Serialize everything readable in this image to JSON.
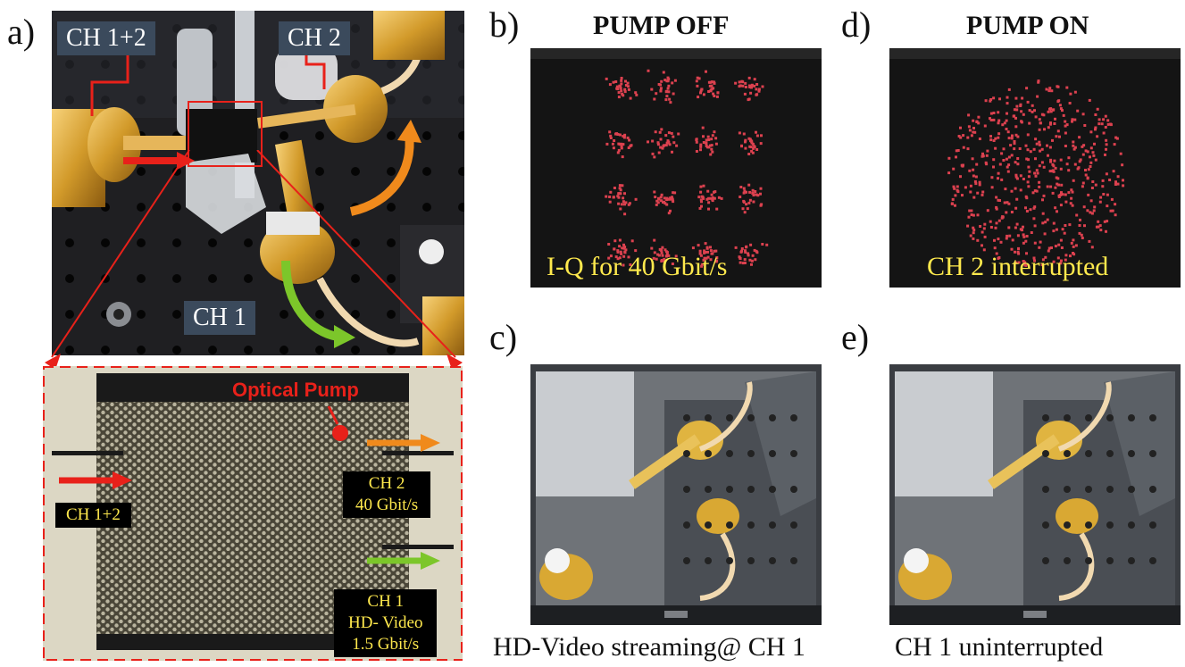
{
  "panel_labels": {
    "a": "a)",
    "b": "b)",
    "c": "c)",
    "d": "d)",
    "e": "e)"
  },
  "photo_a": {
    "ch12": "CH 1+2",
    "ch2": "CH 2",
    "ch1": "CH 1"
  },
  "chip": {
    "pump": "Optical Pump",
    "ch12": "CH 1+2",
    "ch2_line1": "CH 2",
    "ch2_line2": "40 Gbit/s",
    "ch1_line1": "CH 1",
    "ch1_line2": "HD- Video",
    "ch1_line3": "1.5 Gbit/s"
  },
  "panel_b": {
    "heading": "PUMP OFF",
    "overlay": "I-Q for 40 Gbit/s"
  },
  "panel_d": {
    "heading": "PUMP ON",
    "overlay": "CH 2 interrupted"
  },
  "panel_c": {
    "caption": "HD-Video streaming@ CH 1"
  },
  "panel_e": {
    "caption": "CH 1 uninterrupted"
  },
  "colors": {
    "red_arrow": "#e8211a",
    "orange_arrow": "#f08a1c",
    "green_arrow": "#7cc62a",
    "overlay_text": "#ffe94d",
    "tag_bg": "#3b4a5c"
  }
}
